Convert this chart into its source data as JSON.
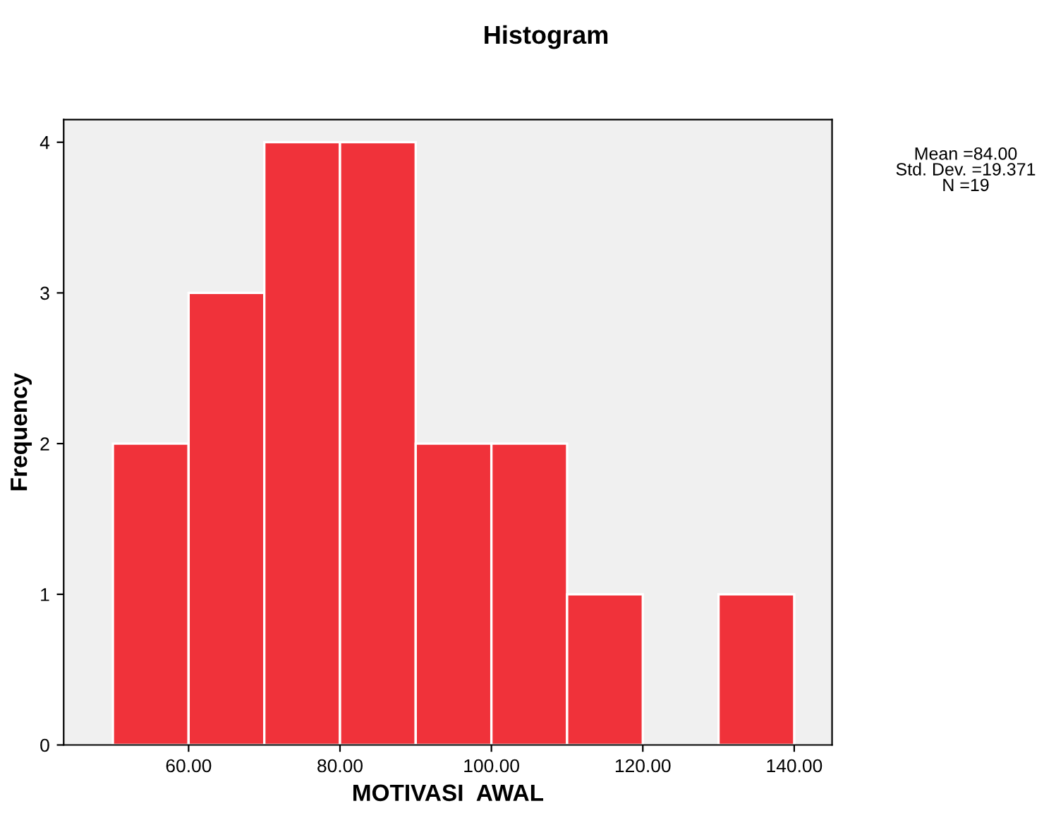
{
  "chart_data": {
    "type": "histogram",
    "title": "Histogram",
    "xlabel": "MOTIVASI  AWAL",
    "ylabel": "Frequency",
    "bins": [
      50,
      60,
      70,
      80,
      90,
      100,
      110,
      120,
      130,
      140
    ],
    "values": [
      2,
      3,
      4,
      4,
      2,
      2,
      1,
      0,
      1
    ],
    "color": "#f0323a",
    "xlim": [
      43.5,
      145
    ],
    "ylim": [
      0,
      4.15
    ],
    "xticks": [
      {
        "value": 60,
        "label": "60.00"
      },
      {
        "value": 80,
        "label": "80.00"
      },
      {
        "value": 100,
        "label": "100.00"
      },
      {
        "value": 120,
        "label": "120.00"
      },
      {
        "value": 140,
        "label": "140.00"
      }
    ],
    "yticks": [
      0,
      1,
      2,
      3,
      4
    ],
    "grid": false,
    "annotations": [
      "Mean =84.00",
      "Std. Dev. =19.371",
      "N =19"
    ]
  }
}
